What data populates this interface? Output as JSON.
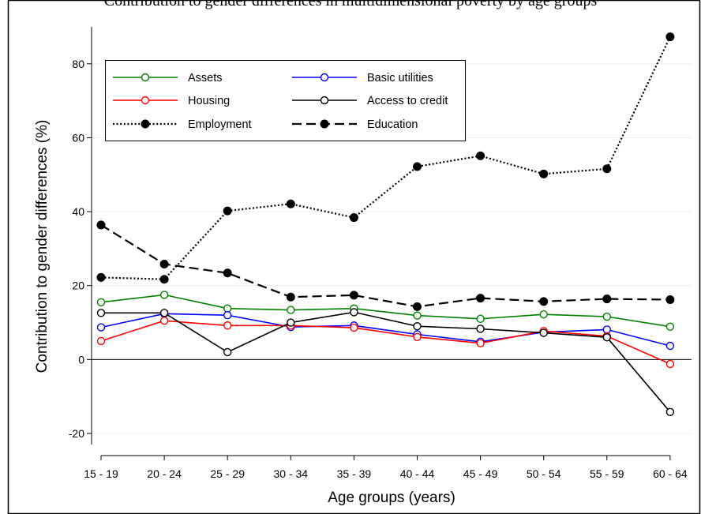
{
  "chart_data": {
    "type": "line",
    "title": "Contribution to gender differences in multidimensional poverty by age groups",
    "xlabel": "Age groups (years)",
    "ylabel": "Contribution to gender differences (%)",
    "categories": [
      "15 - 19",
      "20 - 24",
      "25 - 29",
      "30 - 34",
      "35 - 39",
      "40 - 44",
      "45 - 49",
      "50 - 54",
      "55 - 59",
      "60 - 64"
    ],
    "ylim": [
      -23,
      90
    ],
    "yticks": [
      -20,
      0,
      20,
      40,
      60,
      80
    ],
    "grid": true,
    "legend_position": "top-left",
    "series": [
      {
        "name": "Assets",
        "color": "#008000",
        "line": "solid",
        "marker": "hollow-circle",
        "values": [
          15.5,
          17.5,
          13.8,
          13.4,
          13.8,
          11.9,
          11.0,
          12.2,
          11.6,
          8.9
        ]
      },
      {
        "name": "Basic utilities",
        "color": "#0000ff",
        "line": "solid",
        "marker": "hollow-circle",
        "values": [
          8.7,
          12.4,
          12.0,
          8.8,
          9.2,
          6.8,
          4.8,
          7.4,
          8.1,
          3.7
        ]
      },
      {
        "name": "Housing",
        "color": "#ff0000",
        "line": "solid",
        "marker": "hollow-circle",
        "values": [
          5.0,
          10.5,
          9.2,
          9.2,
          8.6,
          6.1,
          4.4,
          7.7,
          6.3,
          -1.2
        ]
      },
      {
        "name": "Access to credit",
        "color": "#000000",
        "line": "solid",
        "marker": "hollow-circle",
        "values": [
          12.6,
          12.6,
          2.0,
          10.0,
          12.8,
          9.0,
          8.3,
          7.2,
          6.0,
          -14.2
        ]
      },
      {
        "name": "Employment",
        "color": "#000000",
        "line": "dotted",
        "marker": "filled-circle",
        "values": [
          22.2,
          21.7,
          40.2,
          42.1,
          38.4,
          52.2,
          55.1,
          50.2,
          51.6,
          87.3
        ]
      },
      {
        "name": "Education",
        "color": "#000000",
        "line": "dashed",
        "marker": "filled-circle",
        "values": [
          36.4,
          25.8,
          23.4,
          16.9,
          17.4,
          14.3,
          16.6,
          15.7,
          16.4,
          16.2
        ]
      }
    ]
  }
}
